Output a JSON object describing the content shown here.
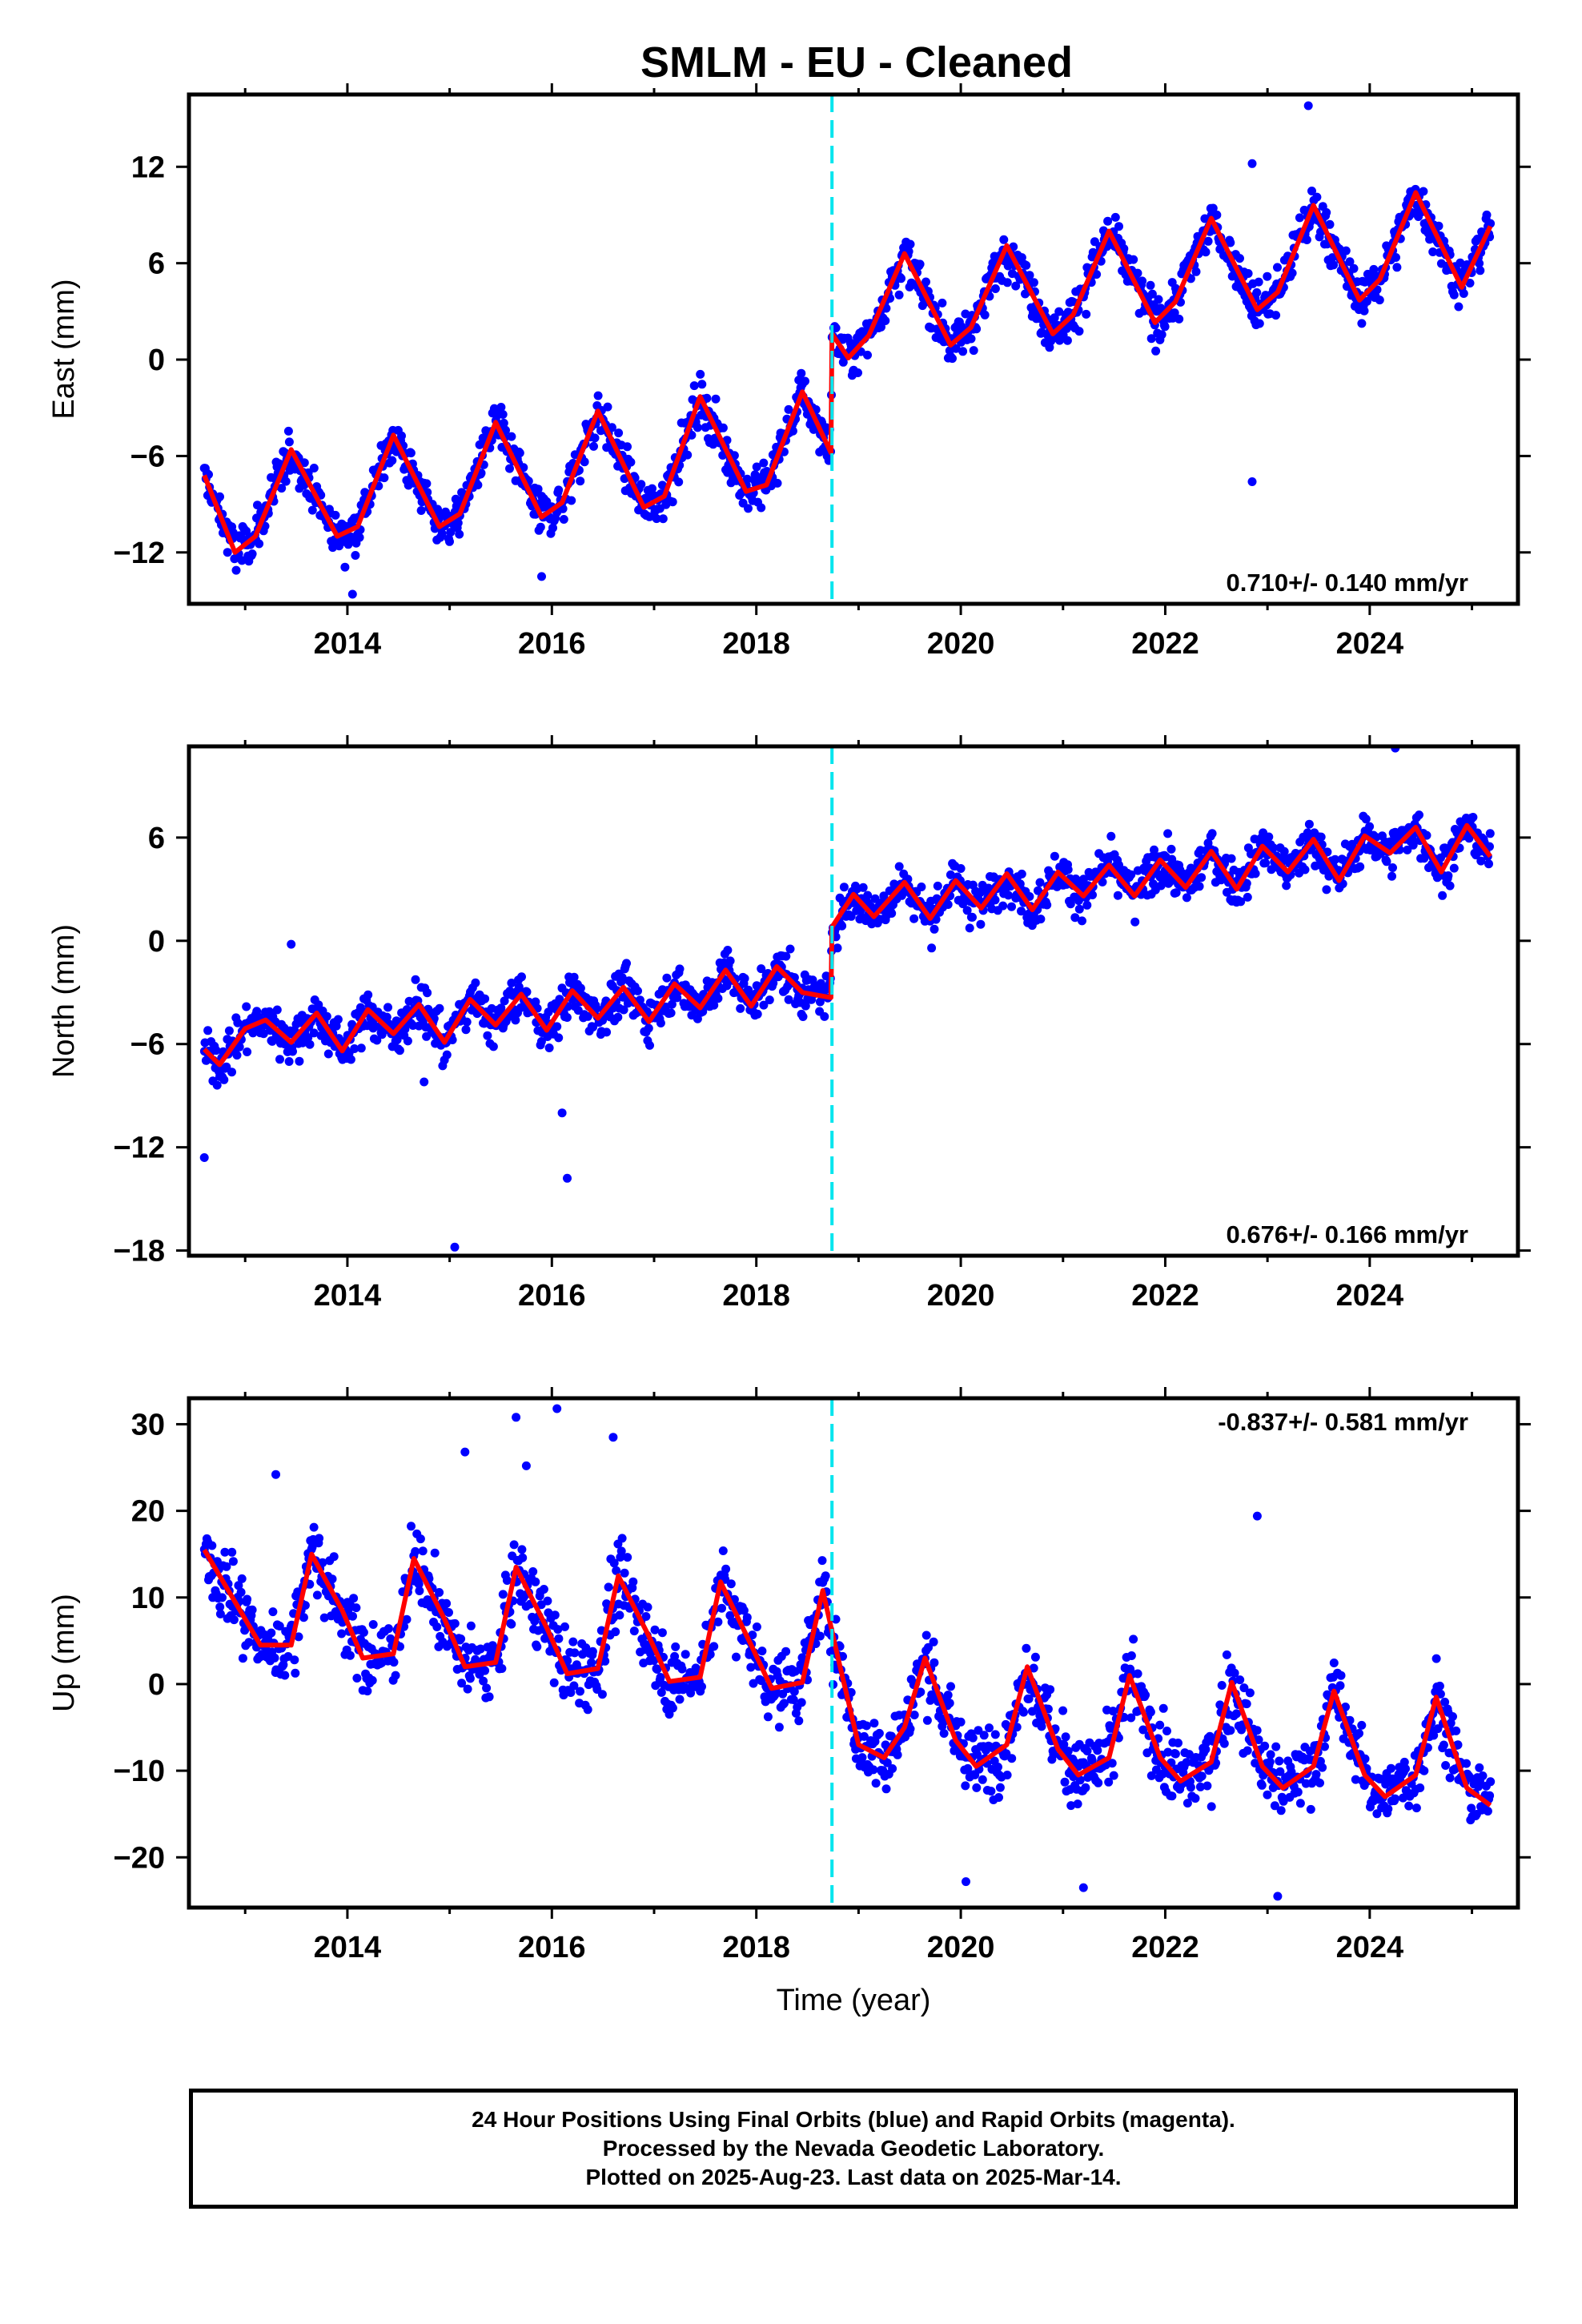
{
  "title": "SMLM  - EU - Cleaned",
  "xlabel": "Time (year)",
  "colors": {
    "final_orbits": "#0000ff",
    "model_fit": "#ff0000",
    "offset_line": "#00e5ee",
    "frame": "#000000"
  },
  "chart_data": [
    {
      "type": "scatter",
      "name": "east",
      "ylabel": "East (mm)",
      "rate_text": "0.710+/- 0.140 mm/yr",
      "rate_placement": "bottom-right",
      "xlim": [
        2012.45,
        2025.45
      ],
      "ylim": [
        -15.2,
        16.5
      ],
      "xticks": [
        2014,
        2016,
        2018,
        2020,
        2022,
        2024
      ],
      "yticks": [
        -12,
        -6,
        0,
        6,
        12
      ],
      "offset_epoch": 2018.74,
      "series": [
        {
          "name": "",
          "kind": "fit",
          "points": [
            [
              2012.6,
              -7.2
            ],
            [
              2012.9,
              -12.0
            ],
            [
              2013.1,
              -11.0
            ],
            [
              2013.45,
              -5.6
            ],
            [
              2013.9,
              -11.0
            ],
            [
              2014.1,
              -10.4
            ],
            [
              2014.45,
              -4.7
            ],
            [
              2014.9,
              -10.4
            ],
            [
              2015.1,
              -9.6
            ],
            [
              2015.45,
              -3.9
            ],
            [
              2015.9,
              -9.8
            ],
            [
              2016.1,
              -8.9
            ],
            [
              2016.45,
              -3.2
            ],
            [
              2016.9,
              -9.2
            ],
            [
              2017.1,
              -8.5
            ],
            [
              2017.45,
              -2.3
            ],
            [
              2017.9,
              -8.2
            ],
            [
              2018.1,
              -7.8
            ],
            [
              2018.45,
              -2.0
            ],
            [
              2018.73,
              -5.8
            ],
            [
              2018.74,
              1.6
            ],
            [
              2018.9,
              0.1
            ],
            [
              2019.1,
              1.5
            ],
            [
              2019.45,
              6.6
            ],
            [
              2019.9,
              0.9
            ],
            [
              2020.1,
              2.0
            ],
            [
              2020.45,
              7.1
            ],
            [
              2020.9,
              1.6
            ],
            [
              2021.1,
              2.8
            ],
            [
              2021.45,
              8.0
            ],
            [
              2021.9,
              2.3
            ],
            [
              2022.1,
              3.6
            ],
            [
              2022.45,
              8.8
            ],
            [
              2022.9,
              3.1
            ],
            [
              2023.1,
              4.2
            ],
            [
              2023.45,
              9.6
            ],
            [
              2023.9,
              3.7
            ],
            [
              2024.1,
              5.0
            ],
            [
              2024.45,
              10.4
            ],
            [
              2024.9,
              4.5
            ],
            [
              2025.18,
              8.3
            ]
          ]
        },
        {
          "name": "",
          "kind": "outliers",
          "points": [
            [
              2022.85,
              -7.6
            ],
            [
              2023.4,
              15.8
            ],
            [
              2022.85,
              12.2
            ],
            [
              2014.05,
              -14.6
            ],
            [
              2015.9,
              -13.5
            ]
          ]
        }
      ]
    },
    {
      "type": "scatter",
      "name": "north",
      "ylabel": "North (mm)",
      "rate_text": "0.676+/- 0.166 mm/yr",
      "rate_placement": "bottom-right",
      "xlim": [
        2012.45,
        2025.45
      ],
      "ylim": [
        -18.3,
        11.3
      ],
      "xticks": [
        2014,
        2016,
        2018,
        2020,
        2022,
        2024
      ],
      "yticks": [
        -18,
        -12,
        -6,
        0,
        6
      ],
      "offset_epoch": 2018.74,
      "series": [
        {
          "name": "",
          "kind": "fit",
          "points": [
            [
              2012.6,
              -6.3
            ],
            [
              2012.75,
              -7.2
            ],
            [
              2013.0,
              -5.1
            ],
            [
              2013.2,
              -4.6
            ],
            [
              2013.45,
              -5.9
            ],
            [
              2013.7,
              -4.2
            ],
            [
              2013.95,
              -6.4
            ],
            [
              2014.2,
              -4.0
            ],
            [
              2014.45,
              -5.4
            ],
            [
              2014.7,
              -3.7
            ],
            [
              2014.95,
              -5.9
            ],
            [
              2015.2,
              -3.4
            ],
            [
              2015.45,
              -4.9
            ],
            [
              2015.7,
              -3.1
            ],
            [
              2015.95,
              -5.2
            ],
            [
              2016.2,
              -2.9
            ],
            [
              2016.45,
              -4.5
            ],
            [
              2016.7,
              -2.7
            ],
            [
              2016.95,
              -4.7
            ],
            [
              2017.2,
              -2.5
            ],
            [
              2017.45,
              -3.9
            ],
            [
              2017.7,
              -1.7
            ],
            [
              2017.95,
              -3.8
            ],
            [
              2018.2,
              -1.5
            ],
            [
              2018.45,
              -3.0
            ],
            [
              2018.73,
              -3.3
            ],
            [
              2018.74,
              0.8
            ],
            [
              2018.95,
              2.7
            ],
            [
              2019.15,
              1.4
            ],
            [
              2019.45,
              3.4
            ],
            [
              2019.7,
              1.3
            ],
            [
              2019.95,
              3.5
            ],
            [
              2020.2,
              1.9
            ],
            [
              2020.45,
              3.9
            ],
            [
              2020.7,
              1.8
            ],
            [
              2020.95,
              4.0
            ],
            [
              2021.2,
              2.6
            ],
            [
              2021.45,
              4.4
            ],
            [
              2021.7,
              2.6
            ],
            [
              2021.95,
              4.7
            ],
            [
              2022.2,
              3.1
            ],
            [
              2022.45,
              5.2
            ],
            [
              2022.7,
              3.0
            ],
            [
              2022.95,
              5.5
            ],
            [
              2023.2,
              4.0
            ],
            [
              2023.45,
              5.9
            ],
            [
              2023.7,
              3.5
            ],
            [
              2023.95,
              6.1
            ],
            [
              2024.2,
              5.1
            ],
            [
              2024.45,
              6.6
            ],
            [
              2024.7,
              4.0
            ],
            [
              2024.95,
              6.7
            ],
            [
              2025.18,
              4.9
            ]
          ]
        },
        {
          "name": "",
          "kind": "outliers",
          "points": [
            [
              2012.6,
              -12.6
            ],
            [
              2015.05,
              -17.8
            ],
            [
              2016.15,
              -13.8
            ],
            [
              2016.1,
              -10.0
            ],
            [
              2014.75,
              -8.2
            ],
            [
              2024.25,
              11.2
            ],
            [
              2013.45,
              -0.2
            ]
          ]
        }
      ]
    },
    {
      "type": "scatter",
      "name": "up",
      "ylabel": "Up (mm)",
      "rate_text": "-0.837+/- 0.581 mm/yr",
      "rate_placement": "top-right",
      "xlim": [
        2012.45,
        2025.45
      ],
      "ylim": [
        -25.8,
        33.0
      ],
      "xticks": [
        2014,
        2016,
        2018,
        2020,
        2022,
        2024
      ],
      "yticks": [
        -20,
        -10,
        0,
        10,
        20,
        30
      ],
      "offset_epoch": 2018.74,
      "series": [
        {
          "name": "",
          "kind": "fit",
          "points": [
            [
              2012.6,
              15.5
            ],
            [
              2012.9,
              9.5
            ],
            [
              2013.15,
              4.5
            ],
            [
              2013.45,
              4.5
            ],
            [
              2013.65,
              15.0
            ],
            [
              2013.95,
              8.5
            ],
            [
              2014.15,
              3.0
            ],
            [
              2014.45,
              3.5
            ],
            [
              2014.65,
              14.5
            ],
            [
              2014.95,
              7.5
            ],
            [
              2015.15,
              2.0
            ],
            [
              2015.45,
              2.5
            ],
            [
              2015.65,
              13.5
            ],
            [
              2015.95,
              6.5
            ],
            [
              2016.15,
              1.2
            ],
            [
              2016.45,
              1.8
            ],
            [
              2016.65,
              12.5
            ],
            [
              2016.95,
              5.5
            ],
            [
              2017.15,
              0.3
            ],
            [
              2017.45,
              0.8
            ],
            [
              2017.65,
              11.8
            ],
            [
              2017.95,
              4.5
            ],
            [
              2018.15,
              -0.5
            ],
            [
              2018.45,
              0.2
            ],
            [
              2018.65,
              10.8
            ],
            [
              2018.8,
              3.0
            ],
            [
              2019.0,
              -7.0
            ],
            [
              2019.25,
              -8.5
            ],
            [
              2019.45,
              -5.0
            ],
            [
              2019.65,
              3.0
            ],
            [
              2019.95,
              -6.5
            ],
            [
              2020.15,
              -9.5
            ],
            [
              2020.45,
              -7.0
            ],
            [
              2020.65,
              2.0
            ],
            [
              2020.95,
              -7.5
            ],
            [
              2021.15,
              -10.5
            ],
            [
              2021.45,
              -8.5
            ],
            [
              2021.65,
              1.0
            ],
            [
              2021.95,
              -8.5
            ],
            [
              2022.15,
              -11.2
            ],
            [
              2022.45,
              -9.0
            ],
            [
              2022.65,
              0.2
            ],
            [
              2022.95,
              -9.5
            ],
            [
              2023.15,
              -12.0
            ],
            [
              2023.45,
              -9.5
            ],
            [
              2023.65,
              -0.8
            ],
            [
              2023.95,
              -10.5
            ],
            [
              2024.15,
              -13.0
            ],
            [
              2024.45,
              -10.5
            ],
            [
              2024.65,
              -1.5
            ],
            [
              2024.95,
              -12.0
            ],
            [
              2025.18,
              -14.0
            ]
          ]
        },
        {
          "name": "",
          "kind": "outliers",
          "points": [
            [
              2016.05,
              31.8
            ],
            [
              2015.65,
              30.8
            ],
            [
              2015.75,
              25.2
            ],
            [
              2022.9,
              19.4
            ],
            [
              2023.1,
              -24.5
            ],
            [
              2020.05,
              -22.8
            ],
            [
              2021.2,
              -23.5
            ],
            [
              2016.6,
              28.5
            ],
            [
              2013.3,
              24.2
            ],
            [
              2015.15,
              26.8
            ]
          ]
        }
      ]
    }
  ],
  "footer": {
    "line1": "24 Hour Positions Using Final Orbits (blue) and Rapid Orbits (magenta).",
    "line2": "Processed by the Nevada Geodetic Laboratory.",
    "line3": "Plotted on 2025-Aug-23. Last data on 2025-Mar-14."
  }
}
